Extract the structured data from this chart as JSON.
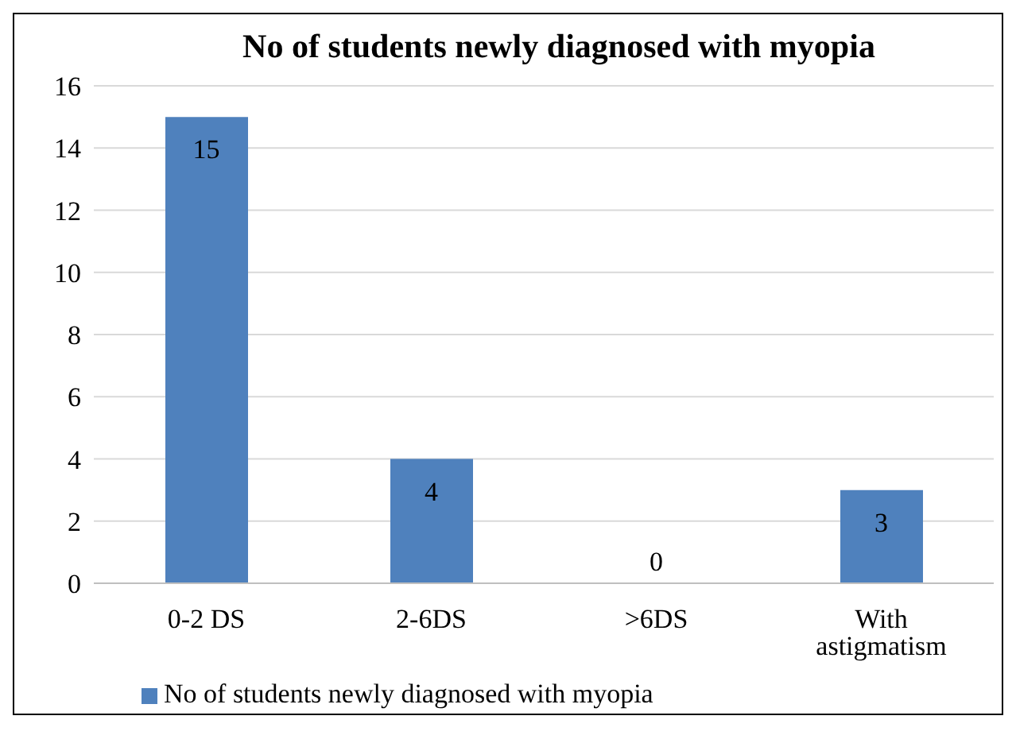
{
  "chart_data": {
    "type": "bar",
    "title": "No of students newly diagnosed with myopia",
    "categories": [
      "0-2 DS",
      "2-6DS",
      ">6DS",
      "With astigmatism"
    ],
    "series": [
      {
        "name": "No of students newly diagnosed with myopia",
        "color": "#4f81bd",
        "values": [
          15,
          4,
          0,
          3
        ]
      }
    ],
    "ylim": [
      0,
      16
    ],
    "yticks": [
      0,
      2,
      4,
      6,
      8,
      10,
      12,
      14,
      16
    ],
    "grid": "y",
    "legend": "bottom left",
    "data_labels": true
  }
}
